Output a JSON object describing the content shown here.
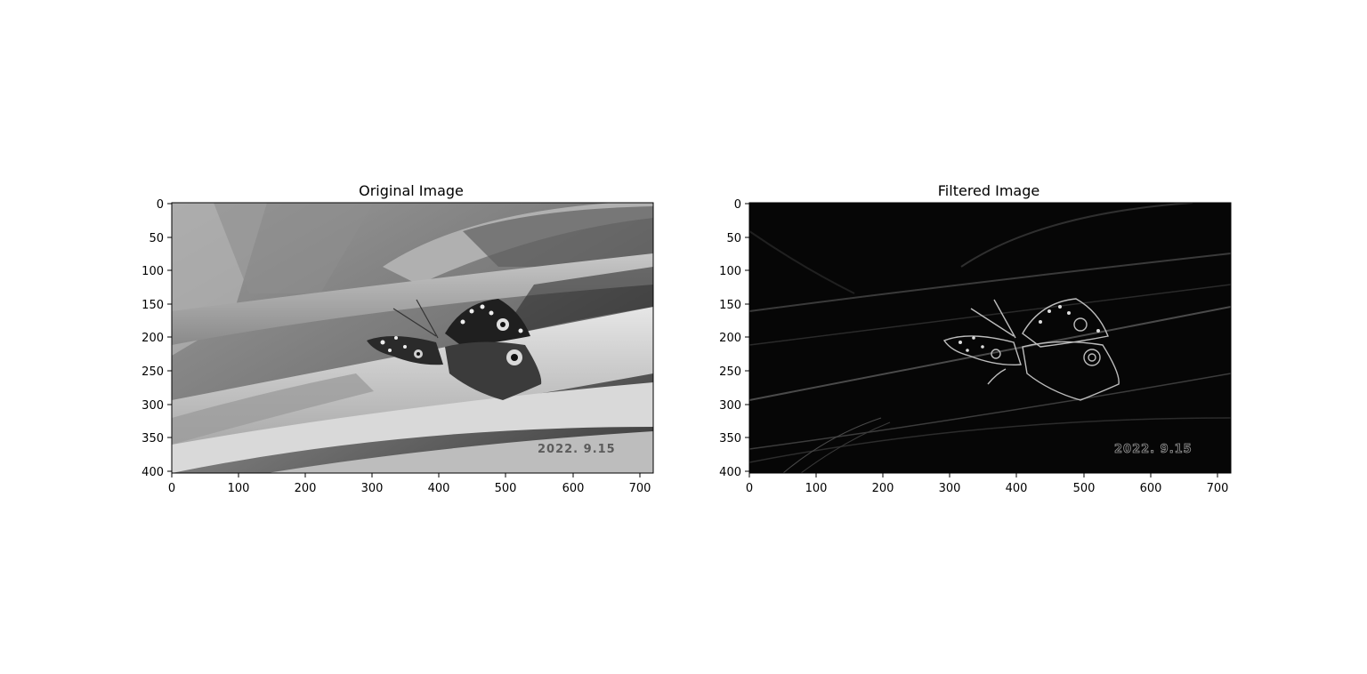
{
  "figure": {
    "panels": [
      {
        "title": "Original Image",
        "stamp": "2022. 9.15",
        "x_ticks": [
          "0",
          "100",
          "200",
          "300",
          "400",
          "500",
          "600",
          "700"
        ],
        "y_ticks": [
          "0",
          "50",
          "100",
          "150",
          "200",
          "250",
          "300",
          "350",
          "400"
        ],
        "colormap": "grayscale"
      },
      {
        "title": "Filtered Image",
        "stamp": "2022. 9.15",
        "x_ticks": [
          "0",
          "100",
          "200",
          "300",
          "400",
          "500",
          "600",
          "700"
        ],
        "y_ticks": [
          "0",
          "50",
          "100",
          "150",
          "200",
          "250",
          "300",
          "350",
          "400"
        ],
        "colormap": "grayscale"
      }
    ],
    "image_width": 720,
    "image_height": 405,
    "subject": "butterfly on leaves"
  }
}
